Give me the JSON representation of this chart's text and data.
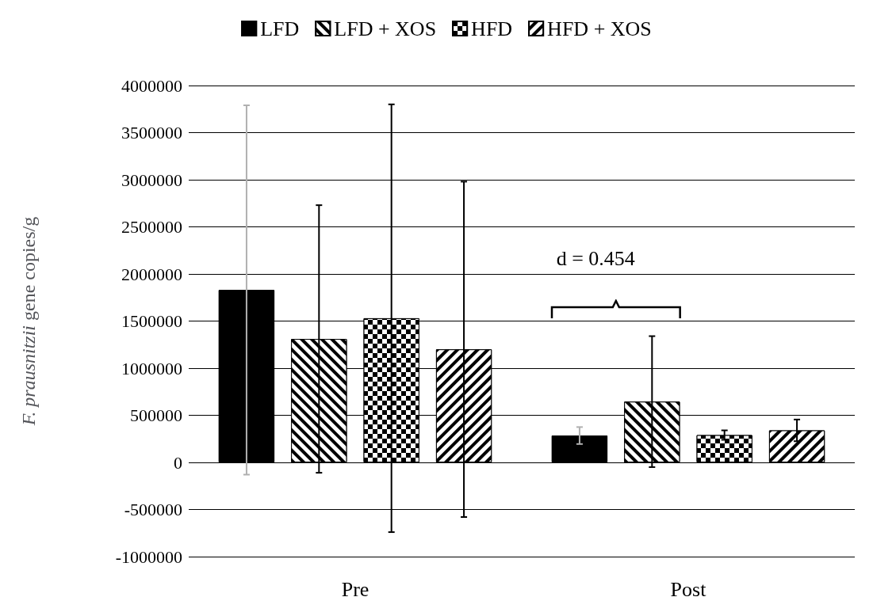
{
  "chart_data": {
    "type": "bar",
    "ylabel": "F. prausnitzii gene copies/g",
    "categories": [
      "Pre",
      "Post"
    ],
    "series": [
      {
        "name": "LFD",
        "color": "#000000",
        "values": [
          1830000,
          285000
        ],
        "errors": [
          1960000,
          90000
        ]
      },
      {
        "name": "LFD + XOS",
        "color": "#000000",
        "values": [
          1310000,
          645000
        ],
        "errors": [
          1420000,
          695000
        ]
      },
      {
        "name": "HFD",
        "color": "#000000",
        "values": [
          1530000,
          290000
        ],
        "errors": [
          2270000,
          50000
        ]
      },
      {
        "name": "HFD + XOS",
        "color": "#000000",
        "values": [
          1200000,
          340000
        ],
        "errors": [
          1780000,
          115000
        ]
      }
    ],
    "ylim": [
      -1000000,
      4000000
    ],
    "yticks": [
      -1000000,
      -500000,
      0,
      500000,
      1000000,
      1500000,
      2000000,
      2500000,
      3000000,
      3500000,
      4000000
    ],
    "grid": "y",
    "legend": "top",
    "annotations": [
      "d = 0.454"
    ]
  }
}
